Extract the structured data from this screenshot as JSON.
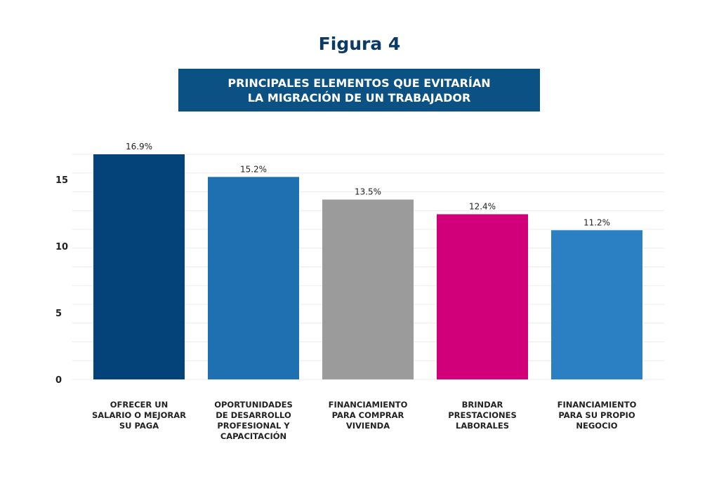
{
  "chart_data": {
    "type": "bar",
    "title": "Figura 4",
    "subtitle_lines": [
      "PRINCIPALES ELEMENTOS QUE EVITARÍAN",
      "LA MIGRACIÓN DE UN TRABAJADOR"
    ],
    "categories": [
      [
        "OFRECER UN",
        "SALARIO O MEJORAR",
        "SU PAGA"
      ],
      [
        "OPORTUNIDADES",
        "DE DESARROLLO",
        "PROFESIONAL Y",
        "CAPACITACIÓN"
      ],
      [
        "FINANCIAMIENTO",
        "PARA COMPRAR",
        "VIVIENDA"
      ],
      [
        "BRINDAR",
        "PRESTACIONES",
        "LABORALES"
      ],
      [
        "FINANCIAMIENTO",
        "PARA SU PROPIO",
        "NEGOCIO"
      ]
    ],
    "values": [
      16.9,
      15.2,
      13.5,
      12.4,
      11.2
    ],
    "data_labels": [
      "16.9%",
      "15.2%",
      "13.5%",
      "12.4%",
      "11.2%"
    ],
    "colors": [
      "#03437a",
      "#1f70b0",
      "#9b9b9b",
      "#d1007a",
      "#2a80c2"
    ],
    "yticks": [
      0,
      5,
      10,
      15
    ],
    "ylim": [
      0,
      16.9
    ],
    "grid": true,
    "xlabel": "",
    "ylabel": ""
  }
}
